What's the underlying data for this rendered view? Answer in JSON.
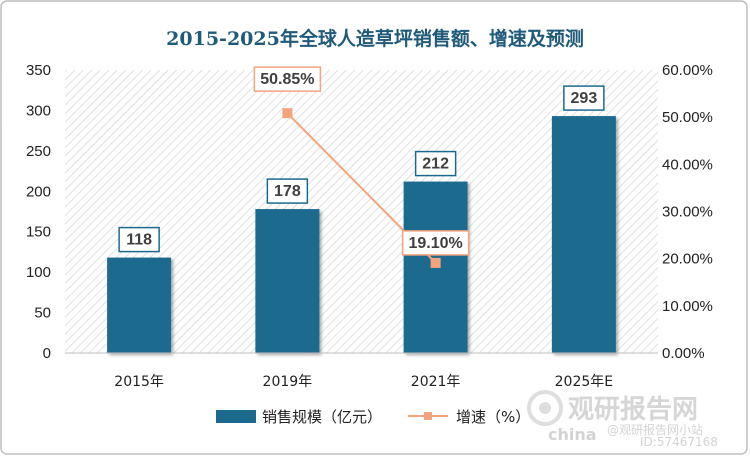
{
  "chart_data": {
    "type": "bar",
    "title": "2015-2025年全球人造草坪销售额、增速及预测",
    "categories": [
      "2015年",
      "2019年",
      "2021年",
      "2025年E"
    ],
    "series": [
      {
        "name": "销售规模（亿元）",
        "type": "bar",
        "axis": "left",
        "values": [
          118,
          178,
          212,
          293
        ],
        "labels": [
          "118",
          "178",
          "212",
          "293"
        ]
      },
      {
        "name": "增速（%）",
        "type": "line",
        "axis": "right",
        "points": [
          {
            "category": "2019年",
            "value": 50.85,
            "label": "50.85%"
          },
          {
            "category": "2021年",
            "value": 19.1,
            "label": "19.10%"
          }
        ]
      }
    ],
    "y_left": {
      "min": 0,
      "max": 350,
      "step": 50,
      "ticks": [
        "0",
        "50",
        "100",
        "150",
        "200",
        "250",
        "300",
        "350"
      ]
    },
    "y_right": {
      "min": 0,
      "max": 60,
      "step": 10,
      "ticks": [
        "0.00%",
        "10.00%",
        "20.00%",
        "30.00%",
        "40.00%",
        "50.00%",
        "60.00%"
      ]
    },
    "legend_position": "bottom",
    "grid": false
  },
  "colors": {
    "bar": "#1b6a8e",
    "line": "#f4a47c",
    "title": "#1f5a7a",
    "frame": "#bfbfbf"
  },
  "watermark": {
    "main": "观研报告网",
    "english": "china",
    "handle": "@观研报告网小站",
    "id": "ID:57467168"
  }
}
